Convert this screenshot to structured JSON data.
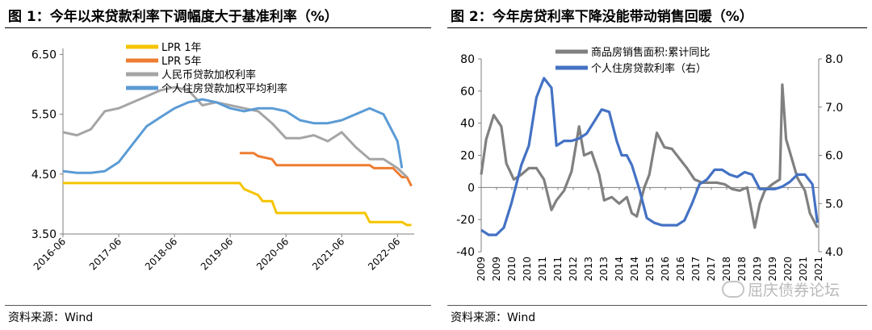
{
  "colors": {
    "lpr1": "#f5c400",
    "lpr5": "#ee7d31",
    "rmb": "#a5a5a5",
    "mortgage": "#5b9bd5",
    "area": "#808080",
    "mortgage2": "#4472c4"
  },
  "watermark": "屈庆债券论坛",
  "chart_data": [
    {
      "type": "line",
      "title": "图 1：今年以来贷款利率下调幅度大于基准利率（%）",
      "source": "资料来源：Wind",
      "xlabels": [
        "2016-06",
        "2017-06",
        "2018-06",
        "2019-06",
        "2020-06",
        "2021-06",
        "2022-06"
      ],
      "yticks": [
        "3.50",
        "4.50",
        "5.50",
        "6.50"
      ],
      "ylim": [
        3.5,
        6.6
      ],
      "legend_position": "top",
      "series": [
        {
          "name": "LPR 1年",
          "color_key": "lpr1",
          "x": [
            2016.5,
            2019.67,
            2019.75,
            2020.0,
            2020.08,
            2020.25,
            2020.33,
            2021.92,
            2022.0,
            2022.58,
            2022.67,
            2022.75
          ],
          "y": [
            4.35,
            4.35,
            4.25,
            4.15,
            4.05,
            4.05,
            3.85,
            3.85,
            3.7,
            3.7,
            3.65,
            3.65
          ]
        },
        {
          "name": "LPR 5年",
          "color_key": "lpr5",
          "x": [
            2019.67,
            2019.92,
            2020.0,
            2020.25,
            2020.33,
            2022.0,
            2022.08,
            2022.33,
            2022.42,
            2022.58,
            2022.67,
            2022.75
          ],
          "y": [
            4.85,
            4.85,
            4.8,
            4.75,
            4.65,
            4.65,
            4.6,
            4.6,
            4.6,
            4.45,
            4.45,
            4.3
          ]
        },
        {
          "name": "人民币贷款加权利率",
          "color_key": "rmb",
          "x": [
            2016.5,
            2016.75,
            2017.0,
            2017.25,
            2017.5,
            2017.75,
            2018.0,
            2018.25,
            2018.5,
            2018.75,
            2019.0,
            2019.25,
            2019.5,
            2019.75,
            2020.0,
            2020.25,
            2020.5,
            2020.75,
            2021.0,
            2021.25,
            2021.5,
            2021.75,
            2022.0,
            2022.25,
            2022.5,
            2022.67
          ],
          "y": [
            5.2,
            5.15,
            5.25,
            5.55,
            5.6,
            5.7,
            5.8,
            5.9,
            5.95,
            5.9,
            5.65,
            5.7,
            5.65,
            5.6,
            5.55,
            5.35,
            5.1,
            5.1,
            5.15,
            5.05,
            5.2,
            4.95,
            4.75,
            4.75,
            4.6,
            4.45
          ]
        },
        {
          "name": "个人住房贷款加权平均利率",
          "color_key": "mortgage",
          "x": [
            2016.5,
            2016.75,
            2017.0,
            2017.25,
            2017.5,
            2017.75,
            2018.0,
            2018.25,
            2018.5,
            2018.75,
            2019.0,
            2019.25,
            2019.5,
            2019.75,
            2020.0,
            2020.25,
            2020.5,
            2020.75,
            2021.0,
            2021.25,
            2021.5,
            2021.75,
            2022.0,
            2022.25,
            2022.5,
            2022.58
          ],
          "y": [
            4.55,
            4.52,
            4.52,
            4.55,
            4.7,
            5.0,
            5.3,
            5.45,
            5.6,
            5.7,
            5.75,
            5.7,
            5.6,
            5.55,
            5.6,
            5.6,
            5.55,
            5.4,
            5.35,
            5.35,
            5.4,
            5.5,
            5.6,
            5.5,
            5.05,
            4.6
          ]
        }
      ]
    },
    {
      "type": "line",
      "title": "图 2：今年房贷利率下降没能带动销售回暖（%）",
      "source": "资料来源：Wind",
      "xlabels": [
        "2009",
        "2009",
        "2010",
        "2010",
        "2011",
        "2011",
        "2012",
        "2013",
        "2013",
        "2014",
        "2014",
        "2015",
        "2016",
        "2016",
        "2017",
        "2017",
        "2018",
        "2018",
        "2019",
        "2019",
        "2020",
        "2021",
        "2021"
      ],
      "yticks_left": [
        "-40",
        "-20",
        "0",
        "20",
        "40",
        "60",
        "80"
      ],
      "yticks_right": [
        "4.0",
        "5.0",
        "6.0",
        "7.0",
        "8.0"
      ],
      "ylim_left": [
        -40,
        80
      ],
      "ylim_right": [
        4.0,
        8.0
      ],
      "legend_position": "top",
      "series": [
        {
          "name": "商品房销售面积:累计同比",
          "axis": "left",
          "color_key": "area",
          "x": [
            2009.0,
            2009.2,
            2009.5,
            2009.8,
            2010.0,
            2010.3,
            2010.6,
            2010.9,
            2011.2,
            2011.5,
            2011.8,
            2012.0,
            2012.3,
            2012.6,
            2012.9,
            2013.1,
            2013.4,
            2013.7,
            2013.9,
            2014.2,
            2014.5,
            2014.8,
            2015.0,
            2015.2,
            2015.5,
            2015.7,
            2016.0,
            2016.3,
            2016.6,
            2016.9,
            2017.2,
            2017.5,
            2017.8,
            2018.1,
            2018.4,
            2018.7,
            2019.0,
            2019.3,
            2019.6,
            2019.9,
            2020.1,
            2020.3,
            2020.6,
            2020.9,
            2021.0,
            2021.15,
            2021.3,
            2021.6,
            2021.9,
            2022.1,
            2022.4
          ],
          "y": [
            8,
            30,
            45,
            38,
            15,
            5,
            8,
            12,
            12,
            5,
            -14,
            -8,
            -2,
            10,
            38,
            20,
            22,
            8,
            -8,
            -6,
            -10,
            -6,
            -16,
            -18,
            0,
            8,
            34,
            25,
            24,
            18,
            12,
            5,
            3,
            3,
            3,
            2,
            -1,
            -2,
            0,
            -25,
            -10,
            -2,
            2,
            5,
            64,
            30,
            22,
            6,
            -2,
            -16,
            -25
          ]
        },
        {
          "name": "个人住房贷款利率（右）",
          "axis": "right",
          "color_key": "mortgage2",
          "x": [
            2009.0,
            2009.3,
            2009.6,
            2009.9,
            2010.2,
            2010.6,
            2010.9,
            2011.2,
            2011.5,
            2011.8,
            2012.0,
            2012.3,
            2012.6,
            2012.9,
            2013.2,
            2013.5,
            2013.8,
            2014.1,
            2014.4,
            2014.6,
            2014.8,
            2015.0,
            2015.3,
            2015.6,
            2015.9,
            2016.2,
            2016.5,
            2016.8,
            2017.1,
            2017.4,
            2017.7,
            2018.0,
            2018.3,
            2018.6,
            2018.9,
            2019.2,
            2019.5,
            2019.8,
            2020.1,
            2020.4,
            2020.7,
            2021.0,
            2021.3,
            2021.6,
            2021.9,
            2022.2,
            2022.4
          ],
          "y": [
            4.45,
            4.35,
            4.35,
            4.5,
            5.0,
            5.8,
            6.2,
            7.2,
            7.6,
            7.4,
            6.2,
            6.3,
            6.3,
            6.35,
            6.45,
            6.7,
            6.95,
            6.9,
            6.3,
            6.0,
            6.0,
            5.8,
            5.3,
            4.7,
            4.6,
            4.55,
            4.55,
            4.55,
            4.65,
            5.0,
            5.4,
            5.5,
            5.7,
            5.7,
            5.6,
            5.55,
            5.65,
            5.6,
            5.3,
            5.3,
            5.3,
            5.35,
            5.45,
            5.6,
            5.6,
            5.4,
            4.6
          ]
        }
      ]
    }
  ]
}
